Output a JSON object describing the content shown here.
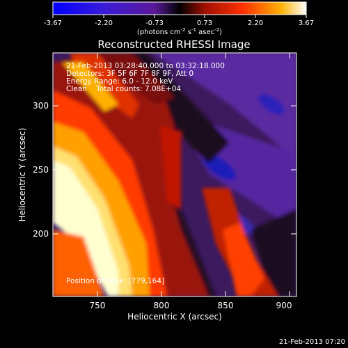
{
  "colorbar": {
    "ticks": [
      "-3.67",
      "-2.20",
      "-0.73",
      "0.73",
      "2.20",
      "3.67"
    ],
    "units_pre": "(photons cm",
    "units_exp1": "-2",
    "units_mid1": " s",
    "units_exp2": "-1",
    "units_mid2": " asec",
    "units_exp3": "-2",
    "units_post": ")"
  },
  "plot": {
    "title": "Reconstructed RHESSI Image",
    "xlabel": "Heliocentric X (arcsec)",
    "ylabel": "Heliocentric Y (arcsec)",
    "x_ticks": [
      "750",
      "800",
      "850",
      "900"
    ],
    "y_ticks": [
      "200",
      "250",
      "300"
    ],
    "info": [
      "21-Feb-2013 03:28:40.000 to 03:32:18.000",
      "Detectors: 3F 5F 6F 7F 8F 9F, Att 0",
      "Energy Range: 6.0 - 12.0 keV",
      "Clean    Total counts: 7.08E+04"
    ],
    "position_label": "Position of Peak: [779,164]"
  },
  "timestamp": "21-Feb-2013 07:20"
}
